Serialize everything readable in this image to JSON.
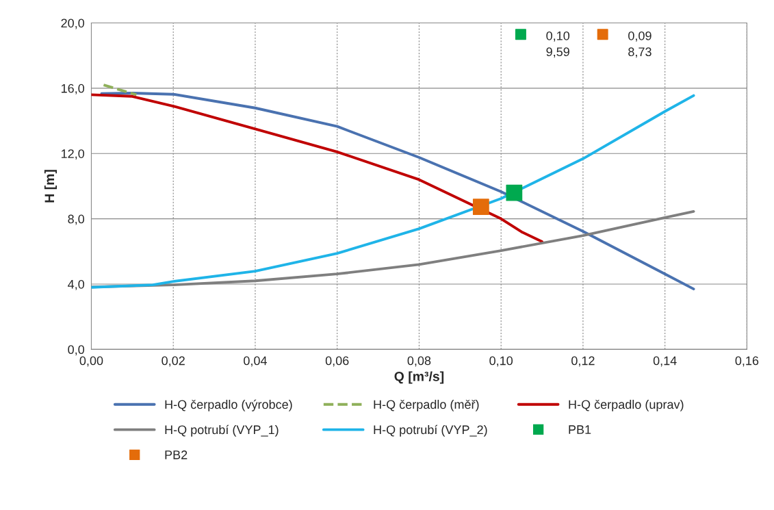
{
  "chart_data": {
    "type": "line",
    "xlabel": "Q [m³/s]",
    "ylabel": "H [m]",
    "xlim": [
      0,
      0.16
    ],
    "ylim": [
      0,
      20
    ],
    "xticks": [
      {
        "value": 0,
        "label": "0,00"
      },
      {
        "value": 0.02,
        "label": "0,02"
      },
      {
        "value": 0.04,
        "label": "0,04"
      },
      {
        "value": 0.06,
        "label": "0,06"
      },
      {
        "value": 0.08,
        "label": "0,08"
      },
      {
        "value": 0.1,
        "label": "0,10"
      },
      {
        "value": 0.12,
        "label": "0,12"
      },
      {
        "value": 0.14,
        "label": "0,14"
      },
      {
        "value": 0.16,
        "label": "0,16"
      }
    ],
    "yticks": [
      {
        "value": 0,
        "label": "0,0"
      },
      {
        "value": 4,
        "label": "4,0"
      },
      {
        "value": 8,
        "label": "8,0"
      },
      {
        "value": 12,
        "label": "12,0"
      },
      {
        "value": 16,
        "label": "16,0"
      },
      {
        "value": 20,
        "label": "20,0"
      }
    ],
    "annotations": [
      "0,10\n9,59",
      "0,09\n8,73"
    ],
    "grid": true,
    "legend": "bottom",
    "marker": "none",
    "series": [
      {
        "name": "H-Q čerpadlo (výrobce)",
        "color": "#4a72b0",
        "x": [
          0.0025,
          0.01,
          0.02,
          0.04,
          0.06,
          0.08,
          0.1,
          0.12,
          0.14,
          0.147
        ],
        "values": [
          15.67,
          15.7,
          15.63,
          14.79,
          13.66,
          11.76,
          9.66,
          7.23,
          4.62,
          3.7
        ]
      },
      {
        "name": "H-Q čerpadlo (měř)",
        "color": "#8fb05a",
        "line_style": "dashed",
        "x": [
          0.003,
          0.011
        ],
        "values": [
          16.2,
          15.6
        ]
      },
      {
        "name": "H-Q čerpadlo (uprav)",
        "color": "#c00000",
        "x": [
          0,
          0.01,
          0.02,
          0.04,
          0.06,
          0.08,
          0.09,
          0.1,
          0.105,
          0.11
        ],
        "values": [
          15.6,
          15.5,
          14.9,
          13.5,
          12.1,
          10.4,
          9.2,
          8.0,
          7.2,
          6.6
        ]
      },
      {
        "name": "H-Q potrubí (VYP_1)",
        "color": "#7f7f7f",
        "x": [
          0,
          0.02,
          0.04,
          0.06,
          0.08,
          0.1,
          0.12,
          0.14,
          0.147
        ],
        "values": [
          3.82,
          3.95,
          4.2,
          4.62,
          5.2,
          6.05,
          6.97,
          8.07,
          8.45
        ]
      },
      {
        "name": "H-Q potrubí (VYP_2)",
        "color": "#1fb4e8",
        "x": [
          0,
          0.015,
          0.02,
          0.04,
          0.06,
          0.08,
          0.1,
          0.12,
          0.14,
          0.147
        ],
        "values": [
          3.8,
          3.95,
          4.16,
          4.79,
          5.88,
          7.39,
          9.24,
          11.68,
          14.58,
          15.55
        ]
      },
      {
        "name": "PB1",
        "type": "scatter",
        "marker": "square",
        "color": "#00a94f",
        "x": [
          0.1032
        ],
        "values": [
          9.59
        ]
      },
      {
        "name": "PB2",
        "type": "scatter",
        "marker": "square",
        "color": "#e46c0a",
        "x": [
          0.0951
        ],
        "values": [
          8.73
        ]
      }
    ]
  }
}
